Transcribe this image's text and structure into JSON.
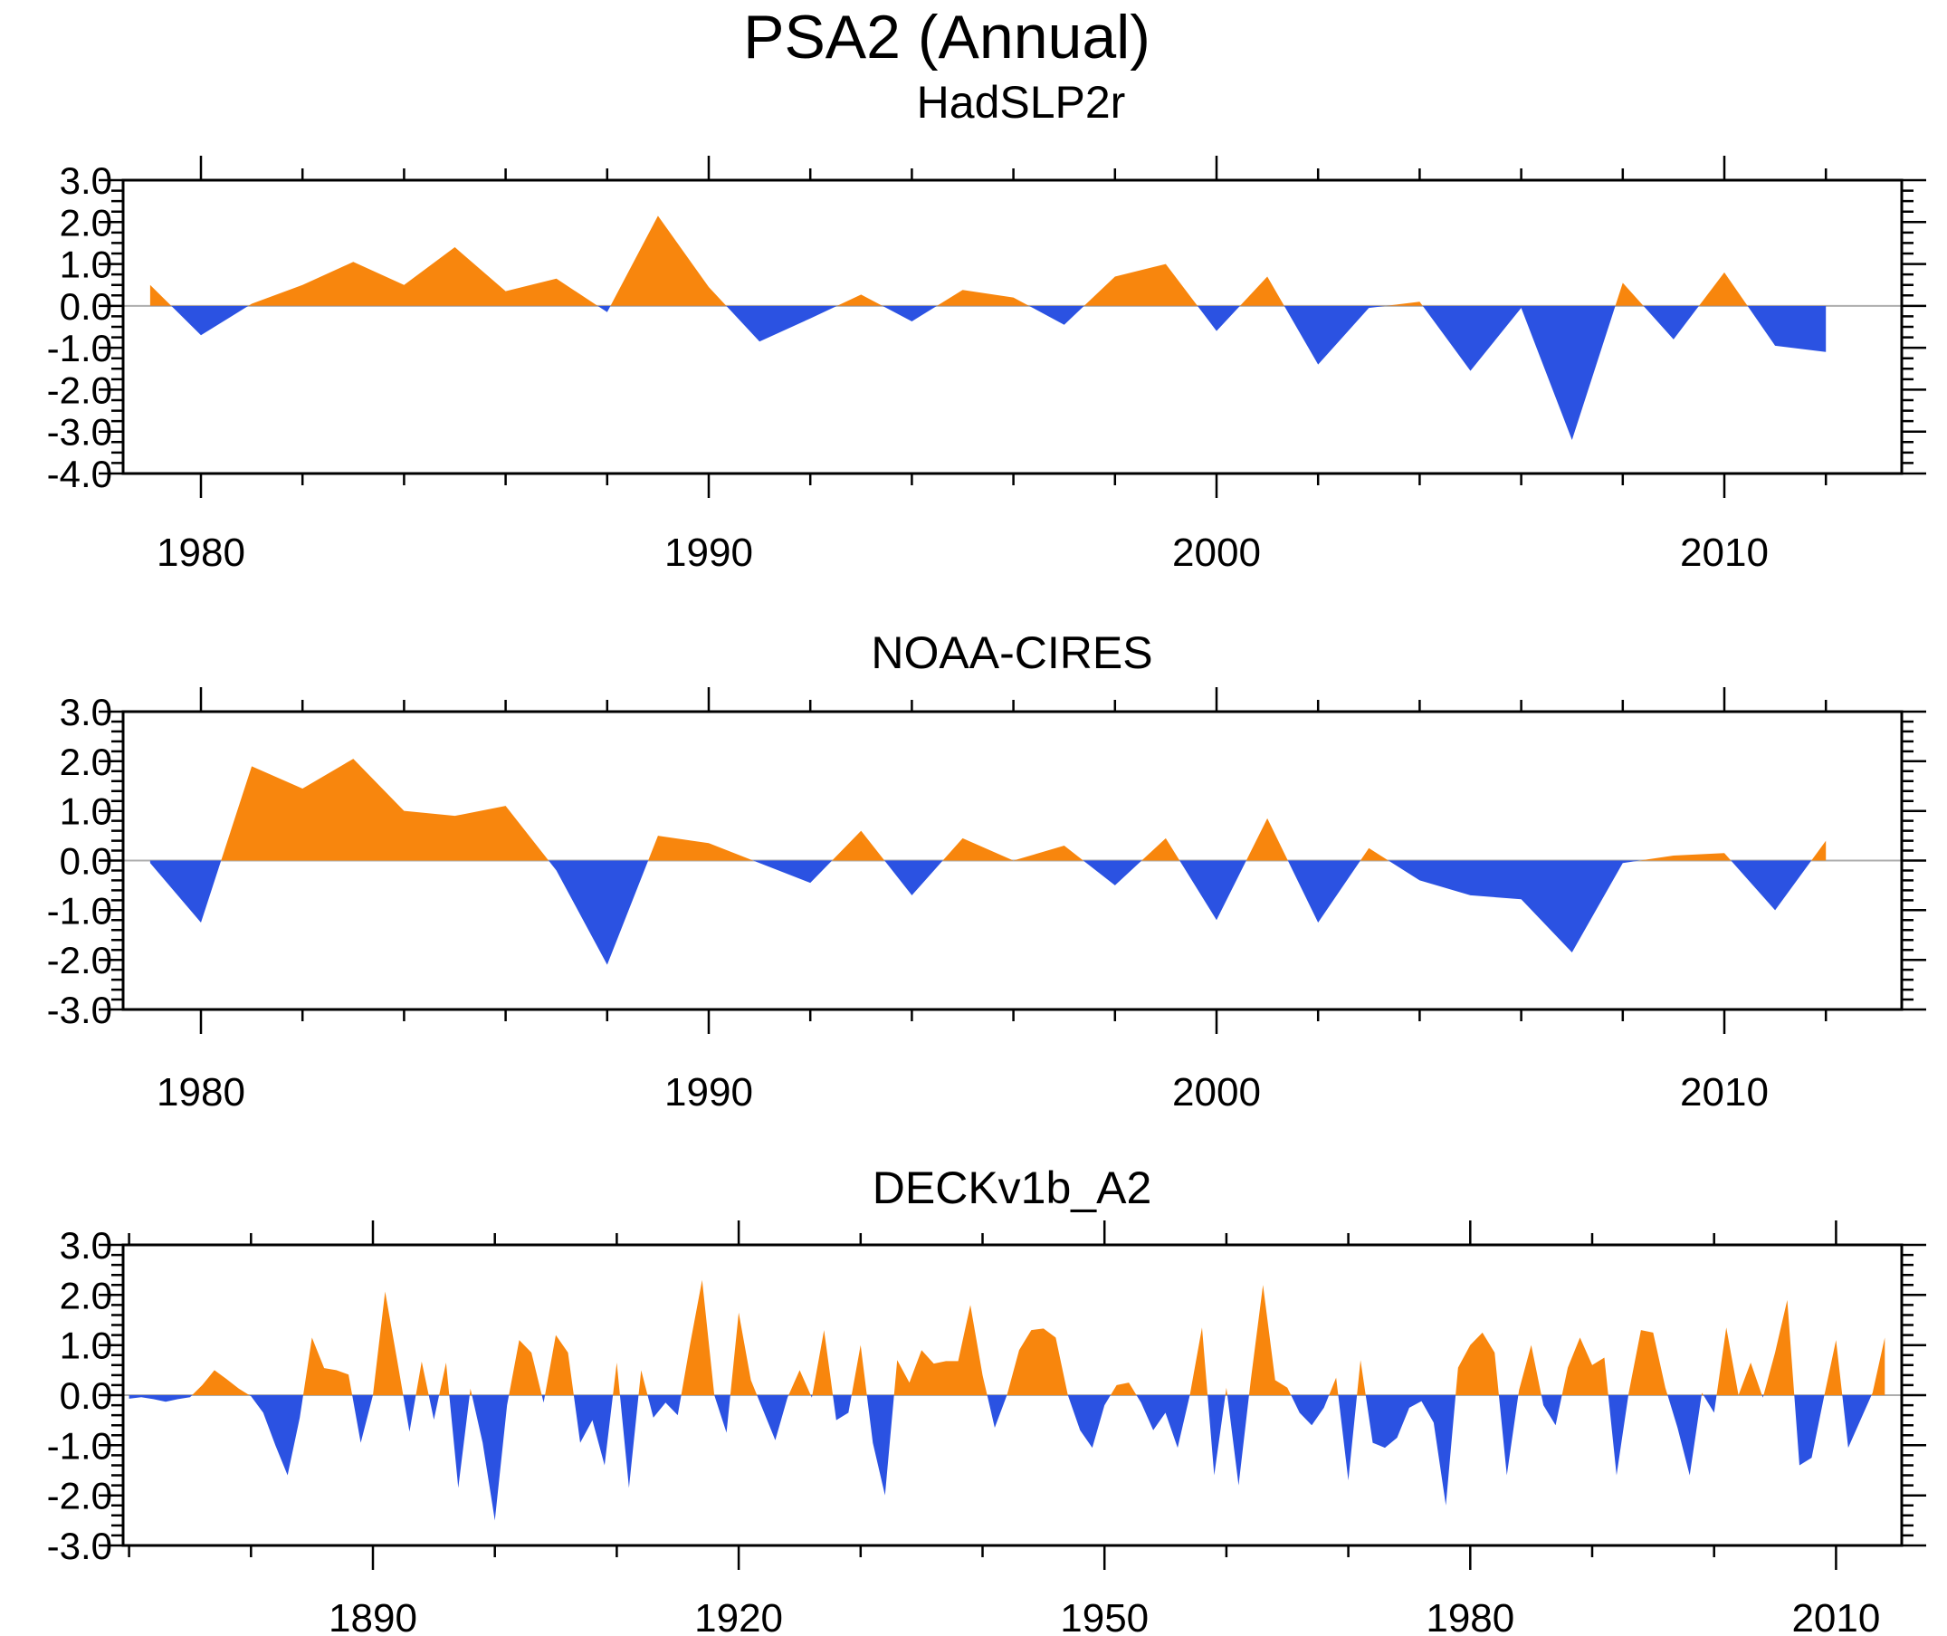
{
  "title": "PSA2 (Annual)",
  "colors": {
    "positive_fill": "#F8860D",
    "negative_fill": "#2B52E2",
    "zero_line": "#ADADAD",
    "axis": "#000000"
  },
  "chart_data": [
    {
      "type": "area",
      "title": "HadSLP2r",
      "start_year": 1979,
      "values": [
        0.5,
        -0.7,
        0.05,
        0.5,
        1.05,
        0.5,
        1.4,
        0.35,
        0.65,
        -0.15,
        2.15,
        0.45,
        -0.85,
        -0.3,
        0.27,
        -0.37,
        0.38,
        0.2,
        -0.45,
        0.7,
        1.0,
        -0.6,
        0.7,
        -1.4,
        -0.05,
        0.1,
        -1.55,
        -0.05,
        -3.2,
        0.55,
        -0.8,
        0.8,
        -0.95,
        -1.1
      ],
      "ylim": [
        -4,
        3
      ],
      "ytick_labels": [
        "3.0",
        "2.0",
        "1.0",
        "0.0",
        "-1.0",
        "-2.0",
        "-3.0",
        "-4.0"
      ],
      "ytick_minor_step": 0.25,
      "xtick_minor_step": 2,
      "xtick_major_step": 10,
      "xtick_label_years": [
        1980,
        1990,
        2000,
        2010
      ],
      "grid": "zero-line-only",
      "legend": "none"
    },
    {
      "type": "area",
      "title": "NOAA-CIRES",
      "start_year": 1979,
      "values": [
        -0.05,
        -1.25,
        1.9,
        1.45,
        2.05,
        1.0,
        0.9,
        1.1,
        -0.2,
        -2.1,
        0.5,
        0.35,
        -0.05,
        -0.45,
        0.6,
        -0.7,
        0.45,
        0.0,
        0.3,
        -0.5,
        0.45,
        -1.2,
        0.85,
        -1.25,
        0.25,
        -0.4,
        -0.7,
        -0.78,
        -1.85,
        -0.05,
        0.1,
        0.15,
        -1.0,
        0.4
      ],
      "ylim": [
        -3,
        3
      ],
      "ytick_labels": [
        "3.0",
        "2.0",
        "1.0",
        "0.0",
        "-1.0",
        "-2.0",
        "-3.0"
      ],
      "ytick_minor_step": 0.2,
      "xtick_minor_step": 2,
      "xtick_major_step": 10,
      "xtick_label_years": [
        1980,
        1990,
        2000,
        2010
      ],
      "grid": "zero-line-only",
      "legend": "none"
    },
    {
      "type": "area",
      "title": "DECKv1b_A2",
      "start_year": 1870,
      "values": [
        -0.07,
        -0.04,
        -0.08,
        -0.13,
        -0.08,
        -0.04,
        0.2,
        0.5,
        0.32,
        0.13,
        -0.02,
        -0.35,
        -1.0,
        -1.6,
        -0.45,
        1.15,
        0.54,
        0.5,
        0.41,
        -0.95,
        0.0,
        2.07,
        0.68,
        -0.73,
        0.67,
        -0.49,
        0.65,
        -1.85,
        0.13,
        -0.95,
        -2.5,
        -0.2,
        1.1,
        0.85,
        -0.15,
        1.2,
        0.85,
        -0.95,
        -0.5,
        -1.4,
        0.65,
        -1.85,
        0.5,
        -0.45,
        -0.15,
        -0.4,
        1.0,
        2.3,
        0.0,
        -0.75,
        1.65,
        0.3,
        -0.3,
        -0.9,
        -0.05,
        0.5,
        -0.05,
        1.3,
        -0.5,
        -0.35,
        1.0,
        -0.95,
        -2.0,
        0.7,
        0.25,
        0.9,
        0.63,
        0.68,
        0.68,
        1.8,
        0.4,
        -0.65,
        0.0,
        0.9,
        1.3,
        1.33,
        1.15,
        0.0,
        -0.7,
        -1.05,
        -0.2,
        0.2,
        0.25,
        -0.15,
        -0.7,
        -0.35,
        -1.05,
        0.0,
        1.35,
        -1.6,
        0.15,
        -1.8,
        0.3,
        2.2,
        0.3,
        0.15,
        -0.35,
        -0.6,
        -0.25,
        0.35,
        -1.7,
        0.7,
        -0.95,
        -1.05,
        -0.85,
        -0.25,
        -0.12,
        -0.55,
        -2.2,
        0.55,
        1.0,
        1.25,
        0.85,
        -1.6,
        0.1,
        1.0,
        -0.2,
        -0.6,
        0.55,
        1.15,
        0.6,
        0.75,
        -1.6,
        0.05,
        1.3,
        1.25,
        0.15,
        -0.65,
        -1.6,
        0.05,
        -0.35,
        1.35,
        0.0,
        0.65,
        -0.05,
        0.85,
        1.9,
        -1.4,
        -1.25,
        -0.05,
        1.1,
        -1.05,
        -0.5,
        0.05,
        1.15
      ],
      "ylim": [
        -3,
        3
      ],
      "ytick_labels": [
        "3.0",
        "2.0",
        "1.0",
        "0.0",
        "-1.0",
        "-2.0",
        "-3.0"
      ],
      "ytick_minor_step": 0.2,
      "xtick_minor_step": 10,
      "xtick_major_step": 30,
      "xtick_label_years": [
        1890,
        1920,
        1950,
        1980,
        2010
      ],
      "grid": "zero-line-only",
      "legend": "none"
    }
  ]
}
